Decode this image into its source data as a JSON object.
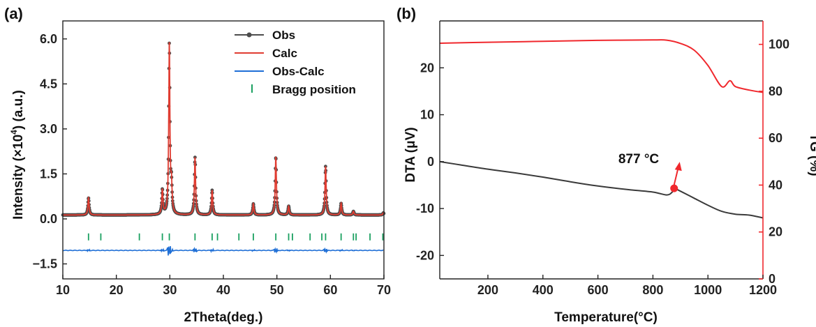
{
  "colors": {
    "obs": "#4d4d4d",
    "calc": "#e03c31",
    "diff": "#1f6fd6",
    "bragg": "#1aa060",
    "dta": "#3a3a3a",
    "tg": "#f0282d",
    "axis": "#222222"
  },
  "chart_data": [
    {
      "panel_label": "(a)",
      "type": "line",
      "xlabel": "2Theta(deg.)",
      "ylabel_main": "Intensity (×10",
      "ylabel_sup": "4",
      "ylabel_end": ") (a.u.)",
      "xlim": [
        10,
        70
      ],
      "ylim": [
        -2.0,
        6.6
      ],
      "xticks": [
        10,
        20,
        30,
        40,
        50,
        60,
        70
      ],
      "yticks": [
        -1.5,
        0.0,
        1.5,
        3.0,
        4.5,
        6.0
      ],
      "ytick_labels": [
        "−1.5",
        "0.0",
        "1.5",
        "3.0",
        "4.5",
        "6.0"
      ],
      "legend": [
        "Obs",
        "Calc",
        "Obs-Calc",
        "Bragg position"
      ],
      "legend_position": "top-right",
      "baseline": 0.13,
      "peaks": [
        {
          "x": 14.8,
          "y": 0.7
        },
        {
          "x": 28.6,
          "y": 0.95
        },
        {
          "x": 29.9,
          "y": 5.8
        },
        {
          "x": 30.3,
          "y": 1.0
        },
        {
          "x": 34.7,
          "y": 2.05
        },
        {
          "x": 37.9,
          "y": 0.95
        },
        {
          "x": 45.6,
          "y": 0.5
        },
        {
          "x": 49.8,
          "y": 2.07
        },
        {
          "x": 52.2,
          "y": 0.42
        },
        {
          "x": 59.1,
          "y": 1.75
        },
        {
          "x": 62.0,
          "y": 0.52
        },
        {
          "x": 64.3,
          "y": 0.25
        },
        {
          "x": 69.9,
          "y": 0.2
        }
      ],
      "diff_offset": -1.05,
      "bragg_y": -0.6,
      "bragg_positions": [
        14.8,
        17.1,
        24.3,
        28.6,
        29.9,
        34.7,
        37.9,
        38.9,
        42.9,
        45.6,
        49.8,
        52.2,
        52.9,
        56.2,
        58.4,
        59.1,
        62.0,
        64.3,
        64.8,
        67.4,
        69.8
      ]
    },
    {
      "panel_label": "(b)",
      "type": "line",
      "xlabel": "Temperature(°C)",
      "ylabel_left": "DTA (μV)",
      "ylabel_right": "TG (%)",
      "xlim": [
        25,
        1200
      ],
      "ylim_left": [
        -25,
        30
      ],
      "ylim_right": [
        0,
        110
      ],
      "xticks": [
        200,
        400,
        600,
        800,
        1000,
        1200
      ],
      "yticks_left": [
        -20,
        -10,
        0,
        10,
        20
      ],
      "yticks_left_labels": [
        "-20",
        "-10",
        "0",
        "10",
        "20"
      ],
      "yticks_right": [
        0,
        20,
        40,
        60,
        80,
        100
      ],
      "series": [
        {
          "axis": "left",
          "x": [
            25,
            100,
            200,
            300,
            400,
            500,
            600,
            700,
            800,
            850,
            870,
            877,
            900,
            950,
            1000,
            1050,
            1100,
            1150,
            1200
          ],
          "y": [
            0,
            -0.7,
            -1.6,
            -2.4,
            -3.3,
            -4.3,
            -5.2,
            -5.9,
            -6.5,
            -7.1,
            -6.5,
            -5.7,
            -6.3,
            -7.8,
            -9.3,
            -10.6,
            -11.2,
            -11.4,
            -12.0
          ]
        },
        {
          "axis": "right",
          "x": [
            25,
            200,
            400,
            600,
            800,
            850,
            900,
            950,
            1000,
            1050,
            1080,
            1100,
            1150,
            1200
          ],
          "y": [
            100.5,
            100.9,
            101.3,
            101.7,
            101.9,
            101.8,
            100.4,
            97.5,
            91,
            82,
            84.5,
            82,
            80.5,
            79.5
          ]
        }
      ],
      "annotation": {
        "text": "877 °C",
        "x": 877,
        "y": -5.7
      }
    }
  ]
}
